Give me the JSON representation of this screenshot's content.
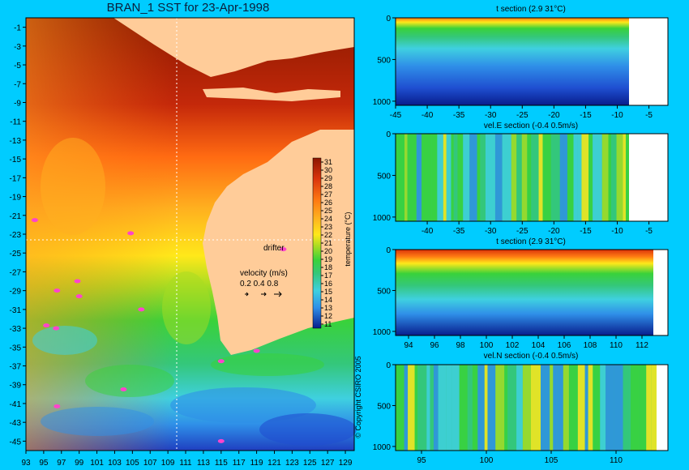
{
  "colors": {
    "background": "#00ccff",
    "land": "#ffcc99",
    "drifter": "#ff44cc",
    "colormap": [
      "#081d8c",
      "#1f4fd1",
      "#2f8fe8",
      "#3fd0e0",
      "#34c77b",
      "#39d23a",
      "#a7dc22",
      "#ffe81a",
      "#ffb01f",
      "#ff7a12",
      "#d9340c",
      "#8c1600"
    ]
  },
  "chart_data": [
    {
      "id": "sst-map",
      "type": "heatmap",
      "title": "BRAN_1 SST for 23-Apr-1998",
      "xticks": [
        "93",
        "95",
        "97",
        "99",
        "101",
        "103",
        "105",
        "107",
        "109",
        "111",
        "113",
        "115",
        "117",
        "119",
        "121",
        "123",
        "125",
        "127",
        "129"
      ],
      "yticks": [
        "-1",
        "-3",
        "-5",
        "-7",
        "-9",
        "-11",
        "-13",
        "-15",
        "-17",
        "-19",
        "-21",
        "-23",
        "-25",
        "-27",
        "-29",
        "-31",
        "-33",
        "-35",
        "-37",
        "-39",
        "-41",
        "-43",
        "-45"
      ],
      "xlim": [
        93,
        130
      ],
      "ylim": [
        -46,
        0
      ],
      "colorbar": {
        "label": "temperature (°C)",
        "ticks": [
          "31",
          "30",
          "29",
          "28",
          "27",
          "26",
          "25",
          "24",
          "23",
          "22",
          "21",
          "20",
          "19",
          "18",
          "17",
          "16",
          "15",
          "14",
          "13",
          "12",
          "11"
        ],
        "range": [
          11,
          31
        ]
      },
      "annotations": {
        "drifter_label": "drifter",
        "velocity_label": "velocity (m/s)",
        "velocity_scale": "0.2 0.4 0.8"
      },
      "drifters": [
        {
          "lon": 94.0,
          "lat": -21.5
        },
        {
          "lon": 104.8,
          "lat": -22.9
        },
        {
          "lon": 98.8,
          "lat": -28.0
        },
        {
          "lon": 96.5,
          "lat": -29.0
        },
        {
          "lon": 99.0,
          "lat": -29.6
        },
        {
          "lon": 95.3,
          "lat": -32.7
        },
        {
          "lon": 96.4,
          "lat": -33.0
        },
        {
          "lon": 106.0,
          "lat": -31.0
        },
        {
          "lon": 119.0,
          "lat": -35.4
        },
        {
          "lon": 115.0,
          "lat": -36.5
        },
        {
          "lon": 104.0,
          "lat": -39.5
        },
        {
          "lon": 96.5,
          "lat": -41.3
        },
        {
          "lon": 115.0,
          "lat": -45.0
        },
        {
          "lon": 122.0,
          "lat": -24.6
        }
      ],
      "section_lines": {
        "lon": 110.0,
        "lat": -23.0
      },
      "copyright": "© Copyright CSIRO 2005"
    },
    {
      "id": "t-section-lat",
      "type": "heatmap",
      "title": "t section (2.9 31°C)",
      "xticks": [
        "-45",
        "-40",
        "-35",
        "-30",
        "-25",
        "-20",
        "-15",
        "-10",
        "-5"
      ],
      "xlim": [
        -45,
        -2
      ],
      "yticks": [
        "0",
        "500",
        "1000"
      ],
      "ylim": [
        1050,
        0
      ],
      "field": "temperature"
    },
    {
      "id": "vel-e-section",
      "type": "heatmap",
      "title": "vel.E section (-0.4 0.5m/s)",
      "xticks": [
        "-40",
        "-35",
        "-30",
        "-25",
        "-20",
        "-15",
        "-10",
        "-5"
      ],
      "xlim": [
        -45,
        -2
      ],
      "yticks": [
        "0",
        "500",
        "1000"
      ],
      "ylim": [
        1050,
        0
      ],
      "field": "velocity"
    },
    {
      "id": "t-section-lon",
      "type": "heatmap",
      "title": "t section (2.9 31°C)",
      "xticks": [
        "94",
        "96",
        "98",
        "100",
        "102",
        "104",
        "106",
        "108",
        "110",
        "112"
      ],
      "xlim": [
        93,
        114
      ],
      "yticks": [
        "0",
        "500",
        "1000"
      ],
      "ylim": [
        1050,
        0
      ],
      "field": "temperature"
    },
    {
      "id": "vel-n-section",
      "type": "heatmap",
      "title": "vel.N section (-0.4 0.5m/s)",
      "xticks": [
        "95",
        "100",
        "105",
        "110"
      ],
      "xlim": [
        93,
        114
      ],
      "yticks": [
        "0",
        "500",
        "1000"
      ],
      "ylim": [
        1050,
        0
      ],
      "field": "velocity"
    }
  ]
}
